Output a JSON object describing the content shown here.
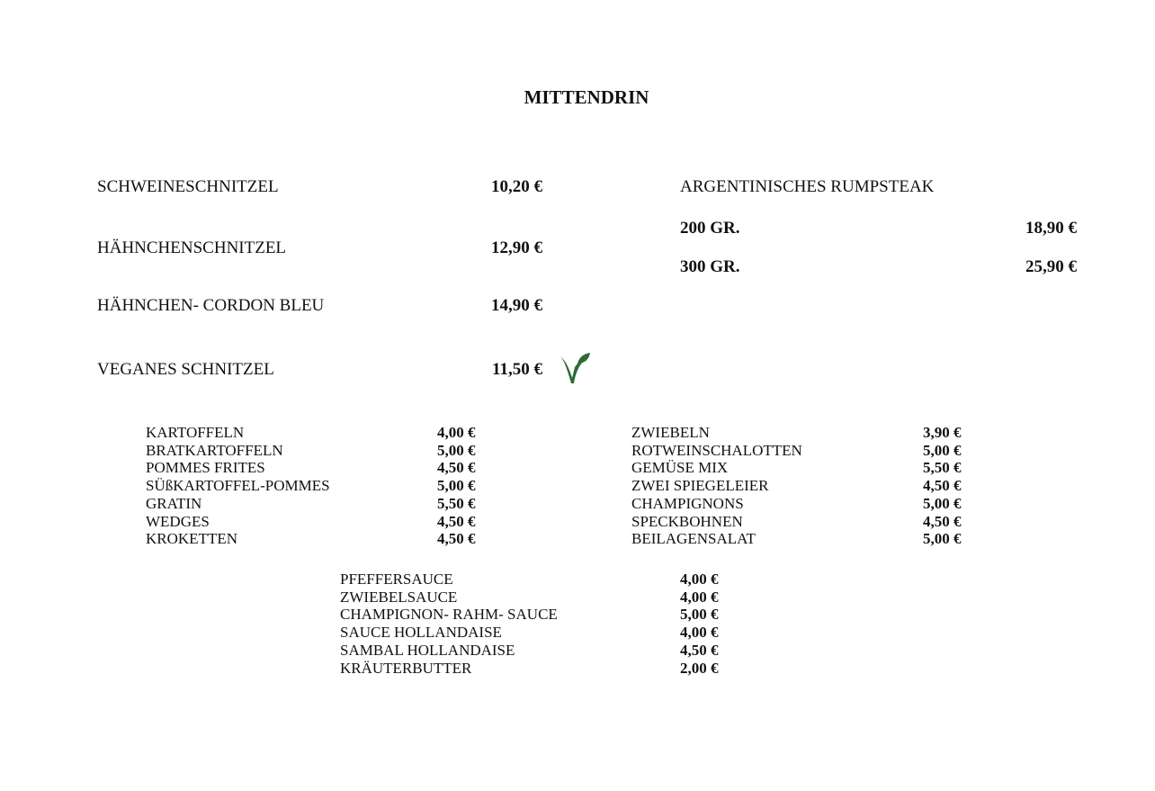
{
  "title": "MITTENDRIN",
  "main_items": [
    {
      "name": "SCHWEINESCHNITZEL",
      "price": "10,20 €"
    },
    {
      "name": "HÄHNCHENSCHNITZEL",
      "price": "12,90 €"
    },
    {
      "name": "HÄHNCHEN- CORDON BLEU",
      "price": "14,90 €"
    },
    {
      "name": "VEGANES SCHNITZEL",
      "price": "11,50 €",
      "icon": "vegan-leaf-icon"
    }
  ],
  "steak": {
    "name": "ARGENTINISCHES RUMPSTEAK",
    "options": [
      {
        "size": "200 GR.",
        "price": "18,90 €"
      },
      {
        "size": "300 GR.",
        "price": "25,90 €"
      }
    ]
  },
  "sides_left": [
    {
      "name": "KARTOFFELN",
      "price": "4,00 €"
    },
    {
      "name": "BRATKARTOFFELN",
      "price": "5,00 €"
    },
    {
      "name": "POMMES FRITES",
      "price": "4,50 €"
    },
    {
      "name": "SÜßKARTOFFEL-POMMES",
      "price": "5,00 €"
    },
    {
      "name": "GRATIN",
      "price": "5,50 €"
    },
    {
      "name": "WEDGES",
      "price": "4,50 €"
    },
    {
      "name": "KROKETTEN",
      "price": "4,50 €"
    }
  ],
  "sides_right": [
    {
      "name": "ZWIEBELN",
      "price": "3,90 €"
    },
    {
      "name": "ROTWEINSCHALOTTEN",
      "price": "5,00 €"
    },
    {
      "name": "GEMÜSE MIX",
      "price": "5,50 €"
    },
    {
      "name": "ZWEI SPIEGELEIER",
      "price": "4,50 €"
    },
    {
      "name": "CHAMPIGNONS",
      "price": "5,00 €"
    },
    {
      "name": "SPECKBOHNEN",
      "price": "4,50 €"
    },
    {
      "name": "BEILAGENSALAT",
      "price": "5,00 €"
    }
  ],
  "sauces": [
    {
      "name": "PFEFFERSAUCE",
      "price": "4,00 €"
    },
    {
      "name": "ZWIEBELSAUCE",
      "price": "4,00 €"
    },
    {
      "name": "CHAMPIGNON- RAHM- SAUCE",
      "price": "5,00 €"
    },
    {
      "name": "SAUCE HOLLANDAISE",
      "price": "4,00 €"
    },
    {
      "name": "SAMBAL HOLLANDAISE",
      "price": "4,50 €"
    },
    {
      "name": "KRÄUTERBUTTER",
      "price": "2,00 €"
    }
  ],
  "colors": {
    "vegan_icon": "#2e6b34",
    "text": "#111111"
  }
}
